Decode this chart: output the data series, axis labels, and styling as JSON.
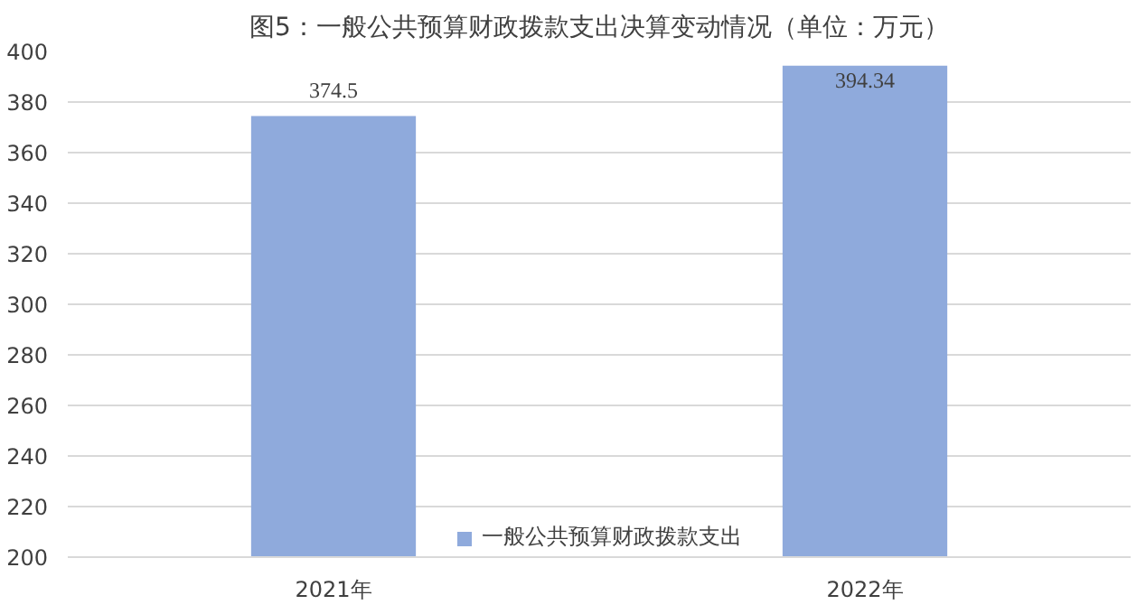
{
  "chart_data": {
    "type": "bar",
    "title": "图5：一般公共预算财政拨款支出决算变动情况（单位：万元）",
    "categories": [
      "2021年",
      "2022年"
    ],
    "series": [
      {
        "name": "一般公共预算财政拨款支出",
        "color": "#8faadc",
        "values": [
          374.5,
          394.34
        ]
      }
    ],
    "ylim": [
      200,
      400
    ],
    "yticks": [
      200,
      220,
      240,
      260,
      280,
      300,
      320,
      340,
      360,
      380,
      400
    ],
    "grid": "y",
    "legend": "bottom",
    "data_labels": true
  }
}
